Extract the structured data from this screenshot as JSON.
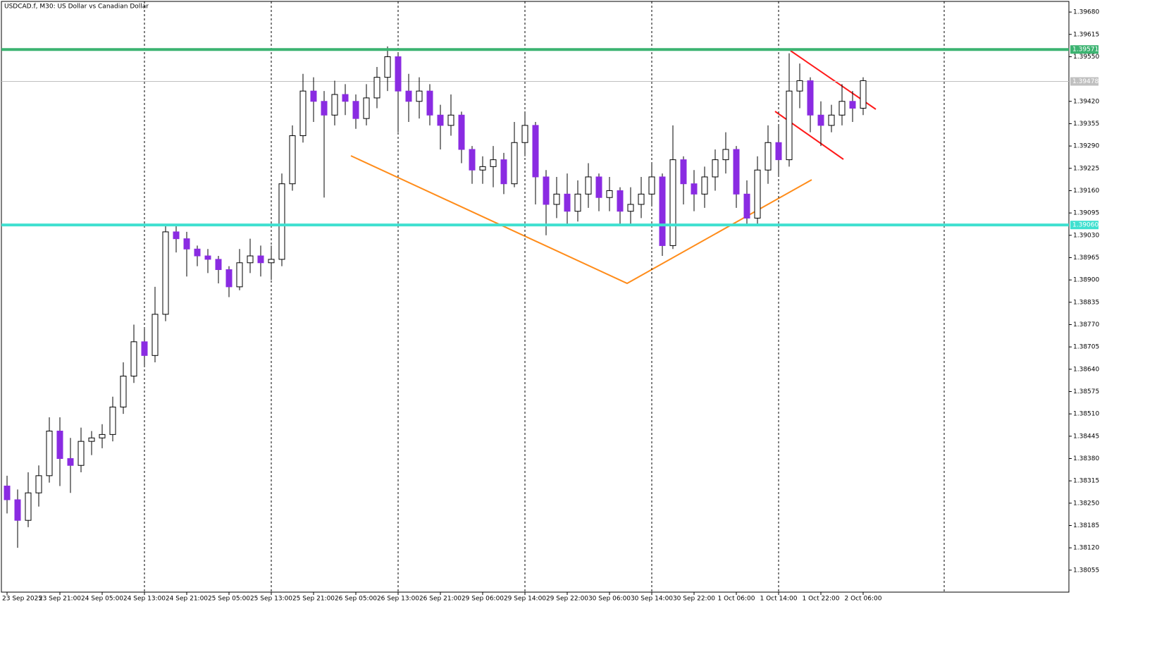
{
  "chart_data": {
    "type": "candlestick",
    "title": "USDCAD.f, M30:  US Dollar vs Canadian Dollar",
    "up_color": "#ffffff",
    "down_color": "#8a2be2",
    "outline_color": "#000000",
    "ylim": [
      1.37991,
      1.39711
    ],
    "yticks": [
      {
        "value": 1.3968,
        "label": "1.39680"
      },
      {
        "value": 1.39615,
        "label": "1.39615"
      },
      {
        "value": 1.3955,
        "label": "1.39550"
      },
      {
        "value": 1.3942,
        "label": "1.39420"
      },
      {
        "value": 1.39355,
        "label": "1.39355"
      },
      {
        "value": 1.3929,
        "label": "1.39290"
      },
      {
        "value": 1.39225,
        "label": "1.39225"
      },
      {
        "value": 1.3916,
        "label": "1.39160"
      },
      {
        "value": 1.39095,
        "label": "1.39095"
      },
      {
        "value": 1.3903,
        "label": "1.39030"
      },
      {
        "value": 1.38965,
        "label": "1.38965"
      },
      {
        "value": 1.389,
        "label": "1.38900"
      },
      {
        "value": 1.38835,
        "label": "1.38835"
      },
      {
        "value": 1.3877,
        "label": "1.38770"
      },
      {
        "value": 1.38705,
        "label": "1.38705"
      },
      {
        "value": 1.3864,
        "label": "1.38640"
      },
      {
        "value": 1.38575,
        "label": "1.38575"
      },
      {
        "value": 1.3851,
        "label": "1.38510"
      },
      {
        "value": 1.38445,
        "label": "1.38445"
      },
      {
        "value": 1.3838,
        "label": "1.38380"
      },
      {
        "value": 1.38315,
        "label": "1.38315"
      },
      {
        "value": 1.3825,
        "label": "1.38250"
      },
      {
        "value": 1.38185,
        "label": "1.38185"
      },
      {
        "value": 1.3812,
        "label": "1.38120"
      },
      {
        "value": 1.38055,
        "label": "1.38055"
      }
    ],
    "levels": [
      {
        "value": 1.39571,
        "label": "1.39571",
        "color": "#3cb371"
      },
      {
        "value": 1.3906,
        "label": "1.39060",
        "color": "#40e0d0"
      }
    ],
    "current_price": {
      "value": 1.39478,
      "label": "1.39478",
      "color": "#c0c0c0"
    },
    "categories": [
      "23 Sep 2025",
      null,
      null,
      null,
      null,
      "23 Sep 21:00",
      null,
      null,
      null,
      "24 Sep 05:00",
      null,
      null,
      null,
      "24 Sep 13:00",
      null,
      null,
      null,
      "24 Sep 21:00",
      null,
      null,
      null,
      "25 Sep 05:00",
      null,
      null,
      null,
      "25 Sep 13:00",
      null,
      null,
      null,
      "25 Sep 21:00",
      null,
      null,
      null,
      "26 Sep 05:00",
      null,
      null,
      null,
      "26 Sep 13:00",
      null,
      null,
      null,
      "26 Sep 21:00",
      null,
      null,
      null,
      "29 Sep 06:00",
      null,
      null,
      null,
      "29 Sep 14:00",
      null,
      null,
      null,
      "29 Sep 22:00",
      null,
      null,
      null,
      "30 Sep 06:00",
      null,
      null,
      null,
      "30 Sep 14:00",
      null,
      null,
      null,
      "30 Sep 22:00",
      null,
      null,
      null,
      "1 Oct 06:00",
      null,
      null,
      null,
      "1 Oct 14:00",
      null,
      null,
      null,
      "1 Oct 22:00",
      null,
      null,
      null,
      "2 Oct 06:00"
    ],
    "ohlc": [
      [
        1.383,
        1.3833,
        1.3822,
        1.3826
      ],
      [
        1.3826,
        1.3829,
        1.3812,
        1.382
      ],
      [
        1.382,
        1.3834,
        1.3818,
        1.3828
      ],
      [
        1.3828,
        1.3836,
        1.3824,
        1.3833
      ],
      [
        1.3833,
        1.385,
        1.3831,
        1.3846
      ],
      [
        1.3846,
        1.385,
        1.383,
        1.3838
      ],
      [
        1.3838,
        1.3844,
        1.3828,
        1.3836
      ],
      [
        1.3836,
        1.3847,
        1.3834,
        1.3843
      ],
      [
        1.3843,
        1.3846,
        1.3839,
        1.3844
      ],
      [
        1.3844,
        1.3848,
        1.3841,
        1.3845
      ],
      [
        1.3845,
        1.3856,
        1.3843,
        1.3853
      ],
      [
        1.3853,
        1.3866,
        1.3851,
        1.3862
      ],
      [
        1.3862,
        1.3877,
        1.386,
        1.3872
      ],
      [
        1.3872,
        1.3876,
        1.3865,
        1.3868
      ],
      [
        1.3868,
        1.3888,
        1.3866,
        1.388
      ],
      [
        1.388,
        1.3906,
        1.3878,
        1.3904
      ],
      [
        1.3904,
        1.3906,
        1.3898,
        1.3902
      ],
      [
        1.3902,
        1.3904,
        1.3891,
        1.3899
      ],
      [
        1.3899,
        1.39,
        1.3894,
        1.3897
      ],
      [
        1.3897,
        1.3899,
        1.3892,
        1.3896
      ],
      [
        1.3896,
        1.3897,
        1.3889,
        1.3893
      ],
      [
        1.3893,
        1.3894,
        1.3885,
        1.3888
      ],
      [
        1.3888,
        1.3899,
        1.3887,
        1.3895
      ],
      [
        1.3895,
        1.3902,
        1.3892,
        1.3897
      ],
      [
        1.3897,
        1.39,
        1.3891,
        1.3895
      ],
      [
        1.3895,
        1.39,
        1.389,
        1.3896
      ],
      [
        1.3896,
        1.3921,
        1.3894,
        1.3918
      ],
      [
        1.3918,
        1.3935,
        1.3916,
        1.3932
      ],
      [
        1.3932,
        1.395,
        1.393,
        1.3945
      ],
      [
        1.3945,
        1.3949,
        1.3936,
        1.3942
      ],
      [
        1.3942,
        1.3945,
        1.3914,
        1.3938
      ],
      [
        1.3938,
        1.3948,
        1.3935,
        1.3944
      ],
      [
        1.3944,
        1.3947,
        1.3938,
        1.3942
      ],
      [
        1.3942,
        1.3944,
        1.3934,
        1.3937
      ],
      [
        1.3937,
        1.3947,
        1.3935,
        1.3943
      ],
      [
        1.3943,
        1.3952,
        1.394,
        1.3949
      ],
      [
        1.3949,
        1.3958,
        1.3945,
        1.3955
      ],
      [
        1.3955,
        1.3956,
        1.3933,
        1.3945
      ],
      [
        1.3945,
        1.395,
        1.3936,
        1.3942
      ],
      [
        1.3942,
        1.3949,
        1.3937,
        1.3945
      ],
      [
        1.3945,
        1.3947,
        1.3935,
        1.3938
      ],
      [
        1.3938,
        1.3941,
        1.3928,
        1.3935
      ],
      [
        1.3935,
        1.3944,
        1.3932,
        1.3938
      ],
      [
        1.3938,
        1.3939,
        1.3924,
        1.3928
      ],
      [
        1.3928,
        1.3929,
        1.3918,
        1.3922
      ],
      [
        1.3922,
        1.3926,
        1.3918,
        1.3923
      ],
      [
        1.3923,
        1.3929,
        1.3917,
        1.3925
      ],
      [
        1.3925,
        1.3927,
        1.3915,
        1.3918
      ],
      [
        1.3918,
        1.3936,
        1.3917,
        1.393
      ],
      [
        1.393,
        1.3939,
        1.3926,
        1.3935
      ],
      [
        1.3935,
        1.3936,
        1.3912,
        1.392
      ],
      [
        1.392,
        1.3922,
        1.3903,
        1.3912
      ],
      [
        1.3912,
        1.392,
        1.3908,
        1.3915
      ],
      [
        1.3915,
        1.3921,
        1.3906,
        1.391
      ],
      [
        1.391,
        1.3919,
        1.3907,
        1.3915
      ],
      [
        1.3915,
        1.3924,
        1.3911,
        1.392
      ],
      [
        1.392,
        1.3921,
        1.391,
        1.3914
      ],
      [
        1.3914,
        1.392,
        1.391,
        1.3916
      ],
      [
        1.3916,
        1.3917,
        1.3906,
        1.391
      ],
      [
        1.391,
        1.3917,
        1.3906,
        1.3912
      ],
      [
        1.3912,
        1.392,
        1.3908,
        1.3915
      ],
      [
        1.3915,
        1.3924,
        1.3912,
        1.392
      ],
      [
        1.392,
        1.3921,
        1.3897,
        1.39
      ],
      [
        1.39,
        1.3935,
        1.3899,
        1.3925
      ],
      [
        1.3925,
        1.3926,
        1.3912,
        1.3918
      ],
      [
        1.3918,
        1.3922,
        1.391,
        1.3915
      ],
      [
        1.3915,
        1.3923,
        1.3911,
        1.392
      ],
      [
        1.392,
        1.3928,
        1.3916,
        1.3925
      ],
      [
        1.3925,
        1.3933,
        1.3921,
        1.3928
      ],
      [
        1.3928,
        1.3929,
        1.3911,
        1.3915
      ],
      [
        1.3915,
        1.3919,
        1.3906,
        1.3908
      ],
      [
        1.3908,
        1.3926,
        1.3906,
        1.3922
      ],
      [
        1.3922,
        1.3935,
        1.3918,
        1.393
      ],
      [
        1.393,
        1.3935,
        1.392,
        1.3925
      ],
      [
        1.3925,
        1.3956,
        1.3923,
        1.3945
      ],
      [
        1.3945,
        1.3953,
        1.394,
        1.3948
      ],
      [
        1.3948,
        1.3949,
        1.3933,
        1.3938
      ],
      [
        1.3938,
        1.3942,
        1.3929,
        1.3935
      ],
      [
        1.3935,
        1.3941,
        1.3933,
        1.3938
      ],
      [
        1.3938,
        1.3947,
        1.3935,
        1.3942
      ],
      [
        1.3942,
        1.3945,
        1.3936,
        1.394
      ],
      [
        1.394,
        1.3949,
        1.3938,
        1.3948
      ]
    ]
  }
}
